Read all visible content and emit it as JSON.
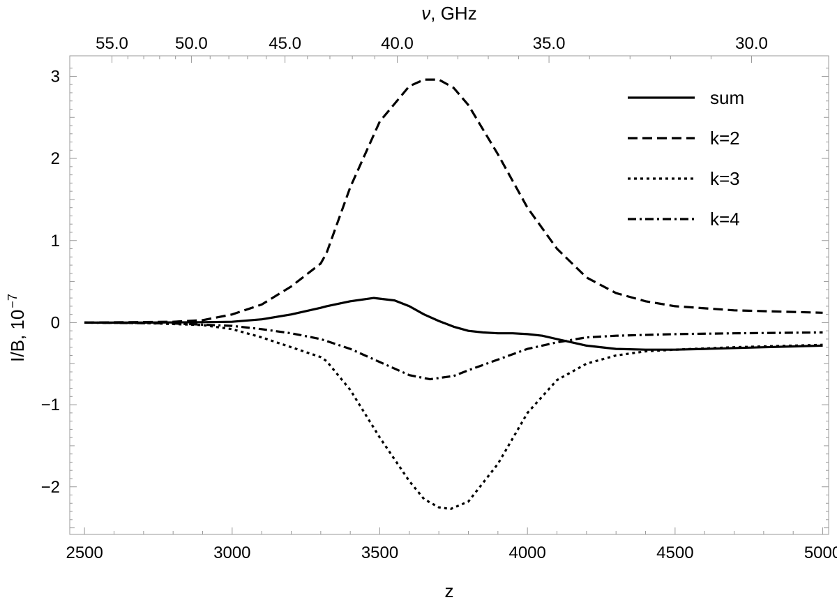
{
  "chart_data": {
    "type": "line",
    "xlabel": "z",
    "ylabel": "I/B, 10",
    "ylabel_exponent": "−7",
    "top_axis_label_symbol": "ν",
    "top_axis_label_rest": ", GHz",
    "xlim": [
      2450,
      5020
    ],
    "ylim": [
      -2.58,
      3.25
    ],
    "x_ticks": [
      2500,
      3000,
      3500,
      4000,
      4500,
      5000
    ],
    "x_tick_labels": [
      "2500",
      "3000",
      "3500",
      "4000",
      "4500",
      "5000"
    ],
    "y_ticks": [
      -2,
      -1,
      0,
      1,
      2,
      3
    ],
    "y_tick_labels": [
      "−2",
      "−1",
      "0",
      "1",
      "2",
      "3"
    ],
    "top_ticks": [
      {
        "label": "55.0",
        "z": 2593
      },
      {
        "label": "50.0",
        "z": 2862
      },
      {
        "label": "45.0",
        "z": 3179
      },
      {
        "label": "40.0",
        "z": 3559
      },
      {
        "label": "35.0",
        "z": 4073
      },
      {
        "label": "30.0",
        "z": 4759
      }
    ],
    "legend_position": "top-right",
    "series": [
      {
        "name": "sum",
        "style": "solid",
        "x": [
          2500,
          2700,
          2900,
          3000,
          3100,
          3200,
          3300,
          3320,
          3400,
          3480,
          3550,
          3600,
          3650,
          3700,
          3750,
          3800,
          3850,
          3900,
          3950,
          4000,
          4050,
          4100,
          4150,
          4200,
          4300,
          4400,
          4500,
          4600,
          4800,
          5000
        ],
        "y": [
          0.0,
          0.0,
          0.005,
          0.01,
          0.04,
          0.1,
          0.18,
          0.2,
          0.26,
          0.3,
          0.27,
          0.2,
          0.1,
          0.02,
          -0.05,
          -0.1,
          -0.12,
          -0.13,
          -0.13,
          -0.14,
          -0.16,
          -0.2,
          -0.24,
          -0.28,
          -0.32,
          -0.33,
          -0.33,
          -0.32,
          -0.3,
          -0.28
        ]
      },
      {
        "name": "k=2",
        "style": "dashed",
        "x": [
          2500,
          2800,
          2900,
          3000,
          3100,
          3200,
          3300,
          3320,
          3400,
          3500,
          3600,
          3650,
          3700,
          3750,
          3800,
          3900,
          4000,
          4100,
          4200,
          4300,
          4400,
          4500,
          4700,
          5000
        ],
        "y": [
          0.0,
          0.01,
          0.03,
          0.1,
          0.22,
          0.44,
          0.72,
          0.85,
          1.65,
          2.45,
          2.88,
          2.96,
          2.96,
          2.86,
          2.65,
          2.05,
          1.4,
          0.9,
          0.55,
          0.36,
          0.26,
          0.2,
          0.15,
          0.12
        ]
      },
      {
        "name": "k=3",
        "style": "dotted",
        "x": [
          2500,
          2700,
          2900,
          3000,
          3100,
          3200,
          3300,
          3320,
          3400,
          3500,
          3600,
          3650,
          3700,
          3740,
          3800,
          3900,
          4000,
          4100,
          4200,
          4300,
          4400,
          4500,
          4700,
          5000
        ],
        "y": [
          0.0,
          -0.005,
          -0.03,
          -0.08,
          -0.18,
          -0.3,
          -0.42,
          -0.47,
          -0.82,
          -1.4,
          -1.93,
          -2.15,
          -2.25,
          -2.27,
          -2.18,
          -1.72,
          -1.1,
          -0.7,
          -0.5,
          -0.4,
          -0.35,
          -0.33,
          -0.3,
          -0.27
        ]
      },
      {
        "name": "k=4",
        "style": "dashdot",
        "x": [
          2500,
          2800,
          3000,
          3100,
          3200,
          3300,
          3400,
          3500,
          3600,
          3670,
          3750,
          3800,
          3900,
          4000,
          4100,
          4200,
          4300,
          4500,
          4700,
          5000
        ],
        "y": [
          0.0,
          -0.01,
          -0.04,
          -0.08,
          -0.13,
          -0.2,
          -0.32,
          -0.48,
          -0.64,
          -0.69,
          -0.65,
          -0.58,
          -0.45,
          -0.32,
          -0.24,
          -0.18,
          -0.16,
          -0.14,
          -0.13,
          -0.12
        ]
      }
    ]
  }
}
